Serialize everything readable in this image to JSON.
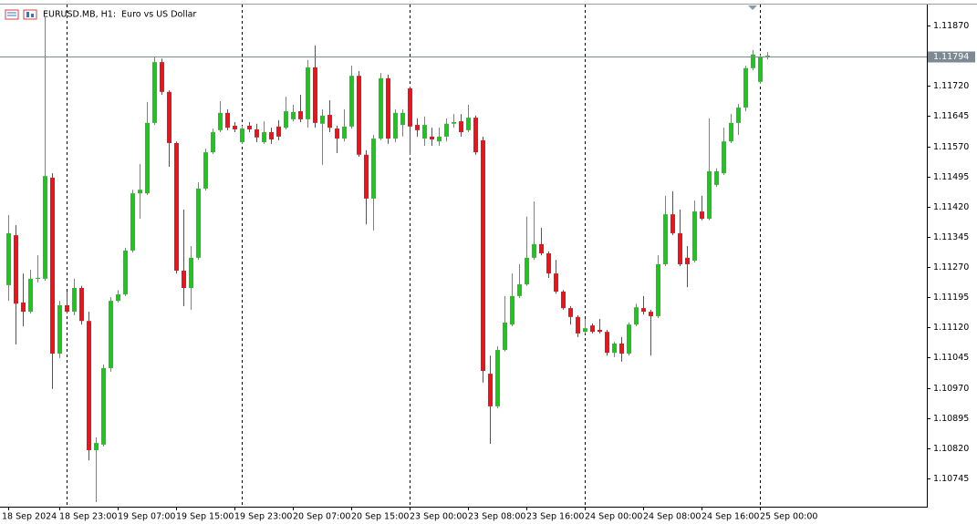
{
  "chart_data": {
    "type": "candlestick",
    "title": "EURUSD.MB, H1:  Euro vs US Dollar",
    "categories": [
      "18 Sep 2024",
      null,
      null,
      null,
      null,
      null,
      null,
      "18 Sep 23:00",
      null,
      null,
      null,
      null,
      null,
      null,
      null,
      "19 Sep 07:00",
      null,
      null,
      null,
      null,
      null,
      null,
      null,
      "19 Sep 15:00",
      null,
      null,
      null,
      null,
      null,
      null,
      null,
      "19 Sep 23:00",
      null,
      null,
      null,
      null,
      null,
      null,
      null,
      "20 Sep 07:00",
      null,
      null,
      null,
      null,
      null,
      null,
      null,
      "20 Sep 15:00",
      null,
      null,
      null,
      null,
      null,
      null,
      null,
      "23 Sep 00:00",
      null,
      null,
      null,
      null,
      null,
      null,
      null,
      "23 Sep 08:00",
      null,
      null,
      null,
      null,
      null,
      null,
      null,
      "23 Sep 16:00",
      null,
      null,
      null,
      null,
      null,
      null,
      null,
      "24 Sep 00:00",
      null,
      null,
      null,
      null,
      null,
      null,
      null,
      "24 Sep 08:00",
      null,
      null,
      null,
      null,
      null,
      null,
      null,
      "24 Sep 16:00",
      null,
      null,
      null,
      null,
      null,
      null,
      null,
      "25 Sep 00:00",
      null
    ],
    "open": [
      1.11225,
      1.11349,
      1.11182,
      1.11159,
      1.11241,
      1.11241,
      1.11492,
      1.11055,
      1.11175,
      1.11159,
      1.11218,
      1.11136,
      1.10815,
      1.10829,
      1.11019,
      1.11186,
      1.11202,
      1.11311,
      1.11453,
      1.11453,
      1.11628,
      1.11779,
      1.11705,
      1.11578,
      1.11261,
      1.11218,
      1.11293,
      1.11465,
      1.11555,
      1.1161,
      1.11653,
      1.11621,
      1.1158,
      1.11621,
      1.11612,
      1.1158,
      1.11605,
      1.11619,
      1.11616,
      1.11637,
      1.11657,
      1.11637,
      1.11766,
      1.11626,
      1.11648,
      1.11614,
      1.11589,
      1.11619,
      1.11745,
      1.11549,
      1.1144,
      1.11589,
      1.11739,
      1.11589,
      1.11623,
      1.11714,
      1.11623,
      1.11589,
      1.11594,
      1.11582,
      1.11594,
      1.11626,
      1.11632,
      1.1161,
      1.11641,
      1.11585,
      1.11005,
      1.10924,
      1.11064,
      1.11127,
      1.11198,
      1.11227,
      1.11293,
      1.11327,
      1.11304,
      1.11254,
      1.11209,
      1.11168,
      1.11146,
      1.11109,
      1.11125,
      1.11114,
      1.11109,
      1.11057,
      1.1108,
      1.11055,
      1.11127,
      1.11168,
      1.11159,
      1.11148,
      1.11277,
      1.11401,
      1.11354,
      1.11293,
      1.11286,
      1.11408,
      1.1139,
      1.11474,
      1.11503,
      1.11582,
      1.11628,
      1.11666,
      1.11764,
      1.1173,
      1.11791
    ],
    "high": [
      1.11399,
      1.11374,
      1.11254,
      1.11263,
      1.11299,
      1.11893,
      1.11503,
      1.11186,
      1.11209,
      1.11241,
      1.11223,
      1.11159,
      1.10847,
      1.11028,
      1.11195,
      1.11213,
      1.11318,
      1.11462,
      1.11526,
      1.1168,
      1.11791,
      1.11788,
      1.11709,
      1.11582,
      1.11413,
      1.11322,
      1.11481,
      1.11564,
      1.11614,
      1.11682,
      1.11662,
      1.1163,
      1.11621,
      1.1163,
      1.11626,
      1.11632,
      1.11616,
      1.11635,
      1.11693,
      1.11673,
      1.11698,
      1.11784,
      1.1182,
      1.11662,
      1.11684,
      1.11621,
      1.11662,
      1.1177,
      1.11757,
      1.1156,
      1.11598,
      1.11752,
      1.11748,
      1.11662,
      1.11662,
      1.11718,
      1.11639,
      1.11644,
      1.11616,
      1.11616,
      1.11639,
      1.1165,
      1.1165,
      1.11673,
      1.11646,
      1.11594,
      1.1105,
      1.11073,
      1.11198,
      1.11254,
      1.11277,
      1.11395,
      1.11433,
      1.11367,
      1.11309,
      1.11288,
      1.11213,
      1.11173,
      1.1115,
      1.11141,
      1.1113,
      1.11141,
      1.11114,
      1.11084,
      1.11096,
      1.11132,
      1.11179,
      1.11198,
      1.11164,
      1.11299,
      1.11447,
      1.11458,
      1.11413,
      1.11322,
      1.11435,
      1.11447,
      1.11639,
      1.11515,
      1.11616,
      1.1165,
      1.11675,
      1.1177,
      1.11809,
      1.11798,
      1.11804
    ],
    "low": [
      1.11186,
      1.11078,
      1.11123,
      1.11155,
      1.11232,
      1.11236,
      1.10967,
      1.11044,
      1.11155,
      1.1115,
      1.11127,
      1.1079,
      1.10686,
      1.10824,
      1.1101,
      1.11182,
      1.11198,
      1.11306,
      1.1139,
      1.11449,
      1.11623,
      1.11698,
      1.11519,
      1.11254,
      1.11173,
      1.11164,
      1.11288,
      1.1146,
      1.11551,
      1.11605,
      1.1161,
      1.11605,
      1.11576,
      1.11605,
      1.1158,
      1.11576,
      1.11576,
      1.11585,
      1.11612,
      1.11632,
      1.1163,
      1.11616,
      1.11616,
      1.11524,
      1.11605,
      1.11553,
      1.11582,
      1.11614,
      1.11544,
      1.11376,
      1.11361,
      1.11585,
      1.11576,
      1.1158,
      1.11594,
      1.11549,
      1.11594,
      1.11571,
      1.11571,
      1.11571,
      1.11582,
      1.11616,
      1.11594,
      1.11605,
      1.11549,
      1.10983,
      1.10831,
      1.10919,
      1.1106,
      1.11123,
      1.11193,
      1.11223,
      1.11288,
      1.11299,
      1.11243,
      1.11204,
      1.11164,
      1.11127,
      1.11096,
      1.11105,
      1.11105,
      1.11105,
      1.1105,
      1.11046,
      1.11035,
      1.1105,
      1.11123,
      1.11152,
      1.1105,
      1.11143,
      1.11272,
      1.11349,
      1.11272,
      1.1122,
      1.11281,
      1.11386,
      1.11386,
      1.11469,
      1.11499,
      1.11578,
      1.11598,
      1.11657,
      1.11759,
      1.11725,
      1.11786
    ],
    "close": [
      1.11354,
      1.11179,
      1.11159,
      1.11241,
      1.11243,
      1.11496,
      1.11055,
      1.11175,
      1.11159,
      1.11218,
      1.11136,
      1.10815,
      1.10833,
      1.11019,
      1.11186,
      1.11202,
      1.11311,
      1.11453,
      1.11462,
      1.11628,
      1.11779,
      1.11705,
      1.11578,
      1.11261,
      1.11218,
      1.11293,
      1.11465,
      1.11555,
      1.11605,
      1.11653,
      1.11616,
      1.11612,
      1.11614,
      1.11612,
      1.11592,
      1.11605,
      1.11587,
      1.11594,
      1.11657,
      1.11655,
      1.11637,
      1.11766,
      1.11628,
      1.11646,
      1.11616,
      1.11589,
      1.11619,
      1.11745,
      1.11549,
      1.1144,
      1.11589,
      1.11739,
      1.11589,
      1.11653,
      1.11653,
      1.11619,
      1.1161,
      1.11623,
      1.11587,
      1.11594,
      1.11626,
      1.1163,
      1.11605,
      1.11641,
      1.11555,
      1.11012,
      1.10924,
      1.11064,
      1.11132,
      1.11198,
      1.11227,
      1.11293,
      1.11327,
      1.11304,
      1.11254,
      1.11209,
      1.11168,
      1.11146,
      1.11105,
      1.11118,
      1.11109,
      1.11109,
      1.11057,
      1.1108,
      1.11055,
      1.11127,
      1.1117,
      1.11159,
      1.11148,
      1.11277,
      1.11401,
      1.11354,
      1.11277,
      1.11277,
      1.11408,
      1.1139,
      1.11508,
      1.11508,
      1.11582,
      1.11628,
      1.11666,
      1.11764,
      1.11798,
      1.11791,
      1.11795
    ],
    "ylim": [
      1.10677,
      1.11922
    ],
    "yticks": [
      {
        "value": 1.1187,
        "label": "1.11870"
      },
      {
        "value": 1.1172,
        "label": "1.11720"
      },
      1.11645,
      {
        "value": 1.1157,
        "label": "1.11570"
      },
      1.11495,
      {
        "value": 1.1142,
        "label": "1.11420"
      },
      1.11345,
      {
        "value": 1.1127,
        "label": "1.11270"
      },
      1.11195,
      {
        "value": 1.1112,
        "label": "1.11120"
      },
      1.11045,
      {
        "value": 1.1097,
        "label": "1.10970"
      },
      1.10895,
      {
        "value": 1.1082,
        "label": "1.10820"
      },
      1.10745
    ],
    "up_color": "#1fc41f",
    "down_color": "#e8161c",
    "current_price": 1.11794,
    "grid": false
  }
}
